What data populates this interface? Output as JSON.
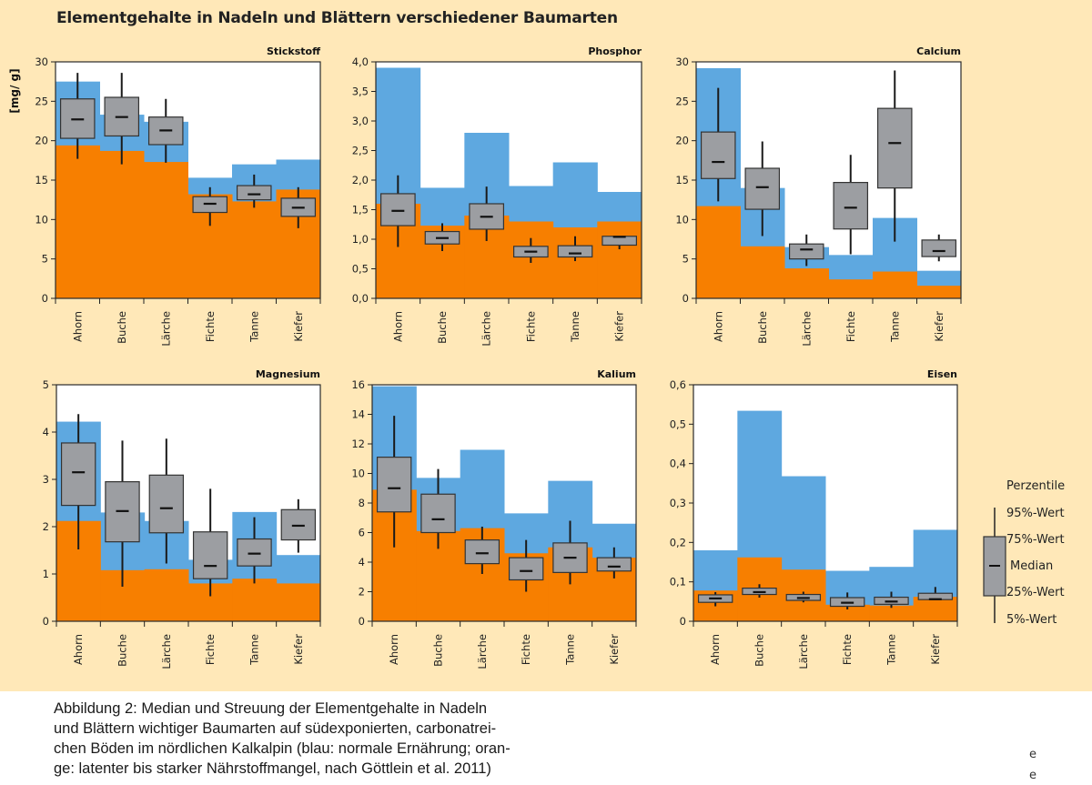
{
  "title": "Elementgehalte in Nadeln und Blättern verschiedener Baumarten",
  "caption": [
    "Abbildung 2: Median und Streuung der Elementgehalte in Nadeln",
    "und Blättern wichtiger Baumarten auf südexponierten, carbonatrei-",
    "chen Böden im nördlichen Kalkalpin (blau: normale Ernährung; oran-",
    "ge: latenter bis starker Nährstoffmangel, nach Göttlein et al. 2011)"
  ],
  "stray_glyphs": [
    "e",
    "e"
  ],
  "colors": {
    "background": "#ffe8b8",
    "normal_blue": "#5ea8e0",
    "deficiency_orange": "#f77f00",
    "box_gray": "#9c9ea2",
    "plot_bg": "#ffffff"
  },
  "legend": {
    "title": "Perzentile",
    "labels": [
      "95%-Wert",
      "75%-Wert",
      "Median",
      "25%-Wert",
      "5%-Wert"
    ]
  },
  "chart_data": [
    {
      "type": "boxplot",
      "title": "Stickstoff",
      "ylabel": "[mg/ g]",
      "ylim": [
        0,
        30
      ],
      "yticks": [
        0,
        5,
        10,
        15,
        20,
        25,
        30
      ],
      "ytick_labels": [
        "0",
        "5",
        "10",
        "15",
        "20",
        "25",
        "30"
      ],
      "categories": [
        "Ahorn",
        "Buche",
        "Lärche",
        "Fichte",
        "Tanne",
        "Kiefer"
      ],
      "normal_upper": [
        27.5,
        23.3,
        22.4,
        15.3,
        17.0,
        17.6
      ],
      "deficiency_upper": [
        19.4,
        18.7,
        17.3,
        13.2,
        12.3,
        13.8
      ],
      "p5": [
        17.7,
        17.0,
        17.2,
        9.2,
        11.5,
        8.9
      ],
      "p25": [
        20.3,
        20.6,
        19.5,
        10.9,
        12.5,
        10.4
      ],
      "median": [
        22.7,
        23.0,
        21.3,
        12.0,
        13.2,
        11.5
      ],
      "p75": [
        25.3,
        25.5,
        23.0,
        12.9,
        14.3,
        12.7
      ],
      "p95": [
        28.6,
        28.6,
        25.3,
        14.1,
        15.7,
        14.1
      ]
    },
    {
      "type": "boxplot",
      "title": "Phosphor",
      "ylim": [
        0,
        4
      ],
      "yticks": [
        0,
        0.5,
        1,
        1.5,
        2,
        2.5,
        3,
        3.5,
        4
      ],
      "ytick_labels": [
        "0,0",
        "0,5",
        "1,0",
        "1,5",
        "2,0",
        "2,5",
        "3,0",
        "3,5",
        "4,0"
      ],
      "categories": [
        "Ahorn",
        "Buche",
        "Lärche",
        "Fichte",
        "Tanne",
        "Kiefer"
      ],
      "normal_upper": [
        3.9,
        1.87,
        2.8,
        1.9,
        2.3,
        1.8
      ],
      "deficiency_upper": [
        1.6,
        1.23,
        1.4,
        1.3,
        1.2,
        1.3
      ],
      "p5": [
        0.87,
        0.8,
        0.97,
        0.6,
        0.63,
        0.83
      ],
      "p25": [
        1.23,
        0.92,
        1.17,
        0.7,
        0.7,
        0.9
      ],
      "median": [
        1.48,
        1.02,
        1.38,
        0.79,
        0.76,
        1.04
      ],
      "p75": [
        1.77,
        1.13,
        1.6,
        0.88,
        0.89,
        1.05
      ],
      "p95": [
        2.08,
        1.27,
        1.89,
        1.02,
        1.05,
        1.05
      ]
    },
    {
      "type": "boxplot",
      "title": "Calcium",
      "ylim": [
        0,
        30
      ],
      "yticks": [
        0,
        5,
        10,
        15,
        20,
        25,
        30
      ],
      "ytick_labels": [
        "0",
        "5",
        "10",
        "15",
        "20",
        "25",
        "30"
      ],
      "categories": [
        "Ahorn",
        "Buche",
        "Lärche",
        "Fichte",
        "Tanne",
        "Kiefer"
      ],
      "normal_upper": [
        29.2,
        14.0,
        6.5,
        5.5,
        10.2,
        3.5
      ],
      "deficiency_upper": [
        11.7,
        6.6,
        3.8,
        2.4,
        3.4,
        1.6
      ],
      "p5": [
        12.3,
        7.9,
        4.1,
        5.6,
        7.2,
        4.7
      ],
      "p25": [
        15.2,
        11.3,
        5.0,
        8.8,
        14.0,
        5.3
      ],
      "median": [
        17.3,
        14.1,
        6.2,
        11.5,
        19.7,
        6.0
      ],
      "p75": [
        21.1,
        16.5,
        6.9,
        14.7,
        24.1,
        7.4
      ],
      "p95": [
        26.7,
        19.9,
        8.1,
        18.2,
        28.9,
        8.1
      ]
    },
    {
      "type": "boxplot",
      "title": "Magnesium",
      "ylim": [
        0,
        5
      ],
      "yticks": [
        0,
        1,
        2,
        3,
        4,
        5
      ],
      "ytick_labels": [
        "0",
        "1",
        "2",
        "3",
        "4",
        "5"
      ],
      "categories": [
        "Ahorn",
        "Buche",
        "Lärche",
        "Fichte",
        "Tanne",
        "Kiefer"
      ],
      "normal_upper": [
        4.22,
        2.3,
        2.12,
        1.3,
        2.31,
        1.4
      ],
      "deficiency_upper": [
        2.12,
        1.08,
        1.1,
        0.8,
        0.9,
        0.8
      ],
      "p5": [
        1.52,
        0.73,
        1.22,
        0.53,
        0.8,
        1.45
      ],
      "p25": [
        2.45,
        1.68,
        1.87,
        0.9,
        1.17,
        1.72
      ],
      "median": [
        3.15,
        2.33,
        2.39,
        1.17,
        1.43,
        2.02
      ],
      "p75": [
        3.77,
        2.95,
        3.09,
        1.89,
        1.74,
        2.36
      ],
      "p95": [
        4.38,
        3.82,
        3.86,
        2.8,
        2.2,
        2.58
      ]
    },
    {
      "type": "boxplot",
      "title": "Kalium",
      "ylim": [
        0,
        16
      ],
      "yticks": [
        0,
        2,
        4,
        6,
        8,
        10,
        12,
        14,
        16
      ],
      "ytick_labels": [
        "0",
        "2",
        "4",
        "6",
        "8",
        "10",
        "12",
        "14",
        "16"
      ],
      "categories": [
        "Ahorn",
        "Buche",
        "Lärche",
        "Fichte",
        "Tanne",
        "Kiefer"
      ],
      "normal_upper": [
        15.9,
        9.7,
        11.6,
        7.3,
        9.5,
        6.6
      ],
      "deficiency_upper": [
        8.9,
        6.1,
        6.3,
        4.6,
        5.0,
        4.3
      ],
      "p5": [
        5.0,
        4.9,
        3.2,
        2.0,
        2.5,
        2.9
      ],
      "p25": [
        7.4,
        6.0,
        3.9,
        2.8,
        3.3,
        3.4
      ],
      "median": [
        9.0,
        6.9,
        4.6,
        3.4,
        4.3,
        3.7
      ],
      "p75": [
        11.1,
        8.6,
        5.5,
        4.3,
        5.3,
        4.3
      ],
      "p95": [
        13.9,
        10.3,
        6.4,
        5.5,
        6.8,
        5.0
      ]
    },
    {
      "type": "boxplot",
      "title": "Eisen",
      "ylim": [
        0,
        0.6
      ],
      "yticks": [
        0,
        0.1,
        0.2,
        0.3,
        0.4,
        0.5,
        0.6
      ],
      "ytick_labels": [
        "0",
        "0,1",
        "0,2",
        "0,3",
        "0,4",
        "0,5",
        "0,6"
      ],
      "categories": [
        "Ahorn",
        "Buche",
        "Lärche",
        "Fichte",
        "Tanne",
        "Kiefer"
      ],
      "normal_upper": [
        0.18,
        0.534,
        0.368,
        0.128,
        0.138,
        0.232
      ],
      "deficiency_upper": [
        0.078,
        0.162,
        0.131,
        0.042,
        0.04,
        0.062
      ],
      "p5": [
        0.038,
        0.06,
        0.048,
        0.03,
        0.034,
        0.055
      ],
      "p25": [
        0.048,
        0.068,
        0.053,
        0.038,
        0.043,
        0.055
      ],
      "median": [
        0.058,
        0.074,
        0.059,
        0.047,
        0.05,
        0.056
      ],
      "p75": [
        0.067,
        0.084,
        0.068,
        0.06,
        0.061,
        0.071
      ],
      "p95": [
        0.074,
        0.094,
        0.075,
        0.073,
        0.075,
        0.087
      ]
    }
  ]
}
